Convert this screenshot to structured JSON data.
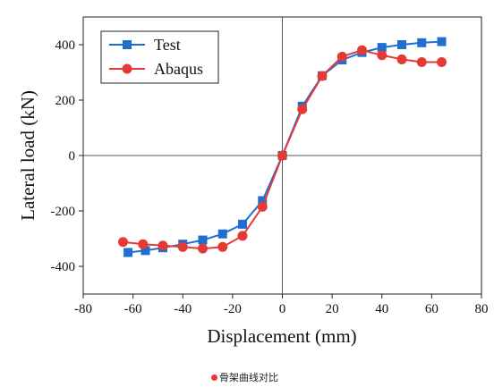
{
  "chart_data": {
    "type": "line",
    "xlabel": "Displacement (mm)",
    "ylabel": "Lateral load (kN)",
    "xlim": [
      -80,
      80
    ],
    "ylim": [
      -500,
      500
    ],
    "xticks": [
      -80,
      -60,
      -40,
      -20,
      0,
      20,
      40,
      60,
      80
    ],
    "yticks": [
      -400,
      -200,
      0,
      200,
      400
    ],
    "grid": false,
    "zero_lines": true,
    "legend_position": "top-left",
    "series": [
      {
        "name": "Test",
        "color": "#1f6fd1",
        "marker": "square",
        "x": [
          -62,
          -55,
          -48,
          -40,
          -32,
          -24,
          -16,
          -8,
          0,
          8,
          16,
          24,
          32,
          40,
          48,
          56,
          64
        ],
        "y": [
          -350,
          -343,
          -333,
          -320,
          -305,
          -283,
          -248,
          -163,
          0,
          178,
          288,
          345,
          372,
          390,
          400,
          407,
          411
        ]
      },
      {
        "name": "Abaqus",
        "color": "#e53935",
        "marker": "circle",
        "x": [
          -64,
          -56,
          -48,
          -40,
          -32,
          -24,
          -16,
          -8,
          0,
          8,
          16,
          24,
          32,
          40,
          48,
          56,
          64
        ],
        "y": [
          -312,
          -320,
          -325,
          -330,
          -336,
          -330,
          -290,
          -185,
          0,
          167,
          287,
          357,
          380,
          362,
          347,
          337,
          337
        ]
      }
    ]
  },
  "caption": {
    "text": "骨架曲线对比",
    "bullet_color": "#e53935"
  }
}
